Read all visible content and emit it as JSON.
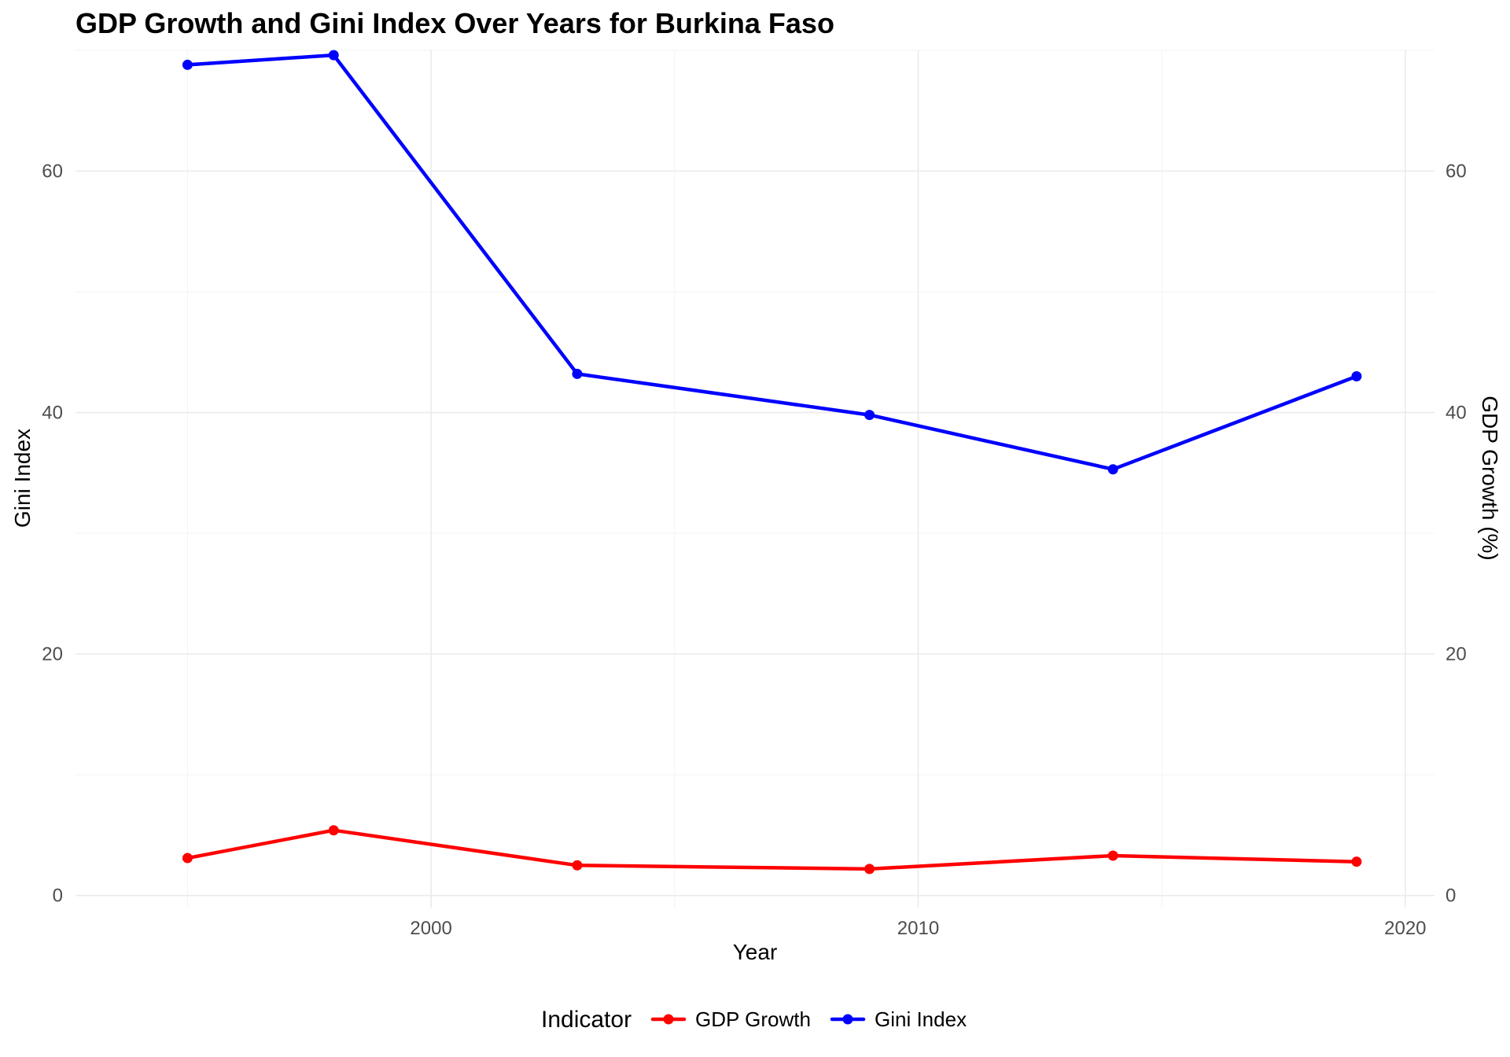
{
  "chart_data": {
    "type": "line",
    "title": "GDP Growth and Gini Index Over Years for  Burkina Faso",
    "xlabel": "Year",
    "ylabel": "Gini Index",
    "y2label": "GDP Growth (%)",
    "x": [
      1995,
      1998,
      2003,
      2009,
      2014,
      2019
    ],
    "x_ticks": [
      2000,
      2010,
      2020
    ],
    "xlim": [
      1992.7,
      2020.6
    ],
    "ylim": [
      -1,
      70
    ],
    "y_ticks": [
      0,
      20,
      40,
      60
    ],
    "y2_ticks": [
      0,
      20,
      40,
      60
    ],
    "grid": true,
    "legend": {
      "title": "Indicator",
      "position": "bottom"
    },
    "series": [
      {
        "name": "GDP Growth",
        "color": "#ff0000",
        "values": [
          3.1,
          5.4,
          2.5,
          2.2,
          3.3,
          2.8
        ]
      },
      {
        "name": "Gini Index",
        "color": "#0000ff",
        "values": [
          68.8,
          69.6,
          43.2,
          39.8,
          35.3,
          43.0
        ]
      }
    ]
  }
}
